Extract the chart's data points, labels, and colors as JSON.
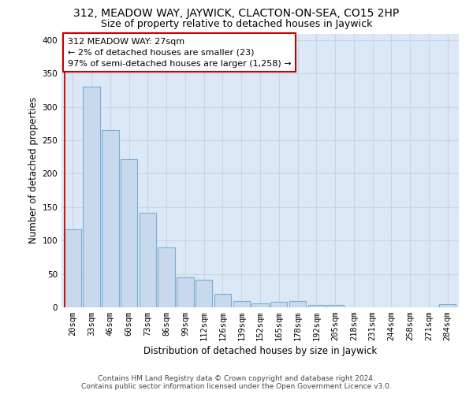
{
  "title": "312, MEADOW WAY, JAYWICK, CLACTON-ON-SEA, CO15 2HP",
  "subtitle": "Size of property relative to detached houses in Jaywick",
  "xlabel": "Distribution of detached houses by size in Jaywick",
  "ylabel": "Number of detached properties",
  "categories": [
    "20sqm",
    "33sqm",
    "46sqm",
    "60sqm",
    "73sqm",
    "86sqm",
    "99sqm",
    "112sqm",
    "126sqm",
    "139sqm",
    "152sqm",
    "165sqm",
    "178sqm",
    "192sqm",
    "205sqm",
    "218sqm",
    "231sqm",
    "244sqm",
    "258sqm",
    "271sqm",
    "284sqm"
  ],
  "values": [
    117,
    330,
    265,
    222,
    141,
    90,
    45,
    41,
    20,
    10,
    6,
    8,
    10,
    4,
    4,
    0,
    0,
    0,
    0,
    0,
    5
  ],
  "bar_facecolor": "#c8d9ee",
  "bar_edgecolor": "#7aadd4",
  "marker_color": "#cc0000",
  "annotation_line1": "312 MEADOW WAY: 27sqm",
  "annotation_line2": "← 2% of detached houses are smaller (23)",
  "annotation_line3": "97% of semi-detached houses are larger (1,258) →",
  "footnote_line1": "Contains HM Land Registry data © Crown copyright and database right 2024.",
  "footnote_line2": "Contains public sector information licensed under the Open Government Licence v3.0.",
  "ylim": [
    0,
    410
  ],
  "yticks": [
    0,
    50,
    100,
    150,
    200,
    250,
    300,
    350,
    400
  ],
  "bg_color": "#dce8f5",
  "grid_color": "#c8d5e5",
  "title_fontsize": 10,
  "subtitle_fontsize": 9,
  "label_fontsize": 8.5,
  "tick_fontsize": 7.5,
  "footnote_fontsize": 6.5,
  "annot_fontsize": 8
}
